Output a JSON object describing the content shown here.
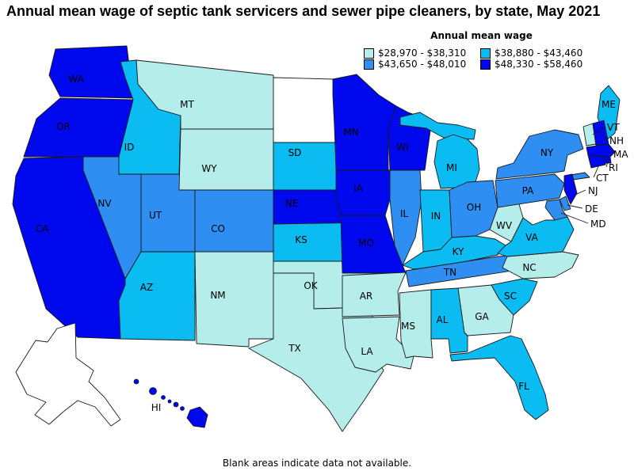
{
  "title": "Annual mean wage of septic tank servicers and sewer pipe cleaners, by state, May 2021",
  "legend": {
    "title": "Annual mean wage",
    "items": [
      {
        "range": "$28,970 - $38,310",
        "color": "#b5edea"
      },
      {
        "range": "$38,880 - $43,460",
        "color": "#0bbcf2"
      },
      {
        "range": "$43,650 - $48,010",
        "color": "#2e8ef2"
      },
      {
        "range": "$48,330 - $58,460",
        "color": "#0008ee"
      }
    ]
  },
  "footnote": "Blank areas indicate data not available.",
  "map": {
    "no_data_fill": "#ffffff",
    "states": [
      {
        "abbr": "WA",
        "wage_band": 4
      },
      {
        "abbr": "OR",
        "wage_band": 4
      },
      {
        "abbr": "CA",
        "wage_band": 4
      },
      {
        "abbr": "ID",
        "wage_band": 2
      },
      {
        "abbr": "NV",
        "wage_band": 3
      },
      {
        "abbr": "UT",
        "wage_band": 3
      },
      {
        "abbr": "AZ",
        "wage_band": 2
      },
      {
        "abbr": "MT",
        "wage_band": 1
      },
      {
        "abbr": "WY",
        "wage_band": 1
      },
      {
        "abbr": "CO",
        "wage_band": 3
      },
      {
        "abbr": "NM",
        "wage_band": 1
      },
      {
        "abbr": "ND",
        "wage_band": null
      },
      {
        "abbr": "SD",
        "wage_band": 2
      },
      {
        "abbr": "NE",
        "wage_band": 4
      },
      {
        "abbr": "KS",
        "wage_band": 2
      },
      {
        "abbr": "OK",
        "wage_band": 1
      },
      {
        "abbr": "TX",
        "wage_band": 1
      },
      {
        "abbr": "MN",
        "wage_band": 4
      },
      {
        "abbr": "IA",
        "wage_band": 4
      },
      {
        "abbr": "MO",
        "wage_band": 4
      },
      {
        "abbr": "AR",
        "wage_band": 1
      },
      {
        "abbr": "LA",
        "wage_band": 1
      },
      {
        "abbr": "WI",
        "wage_band": 4
      },
      {
        "abbr": "IL",
        "wage_band": 3
      },
      {
        "abbr": "MI",
        "wage_band": 2
      },
      {
        "abbr": "IN",
        "wage_band": 2
      },
      {
        "abbr": "OH",
        "wage_band": 3
      },
      {
        "abbr": "KY",
        "wage_band": 2
      },
      {
        "abbr": "TN",
        "wage_band": 3
      },
      {
        "abbr": "MS",
        "wage_band": 1
      },
      {
        "abbr": "AL",
        "wage_band": 2
      },
      {
        "abbr": "GA",
        "wage_band": 1
      },
      {
        "abbr": "FL",
        "wage_band": 2
      },
      {
        "abbr": "SC",
        "wage_band": 2
      },
      {
        "abbr": "NC",
        "wage_band": 1
      },
      {
        "abbr": "VA",
        "wage_band": 2
      },
      {
        "abbr": "WV",
        "wage_band": 1
      },
      {
        "abbr": "PA",
        "wage_band": 3
      },
      {
        "abbr": "NY",
        "wage_band": 3
      },
      {
        "abbr": "ME",
        "wage_band": 2
      },
      {
        "abbr": "VT",
        "wage_band": 1
      },
      {
        "abbr": "NH",
        "wage_band": 4
      },
      {
        "abbr": "MA",
        "wage_band": 4
      },
      {
        "abbr": "RI",
        "wage_band": 4
      },
      {
        "abbr": "CT",
        "wage_band": 4
      },
      {
        "abbr": "NJ",
        "wage_band": 4
      },
      {
        "abbr": "DE",
        "wage_band": 3
      },
      {
        "abbr": "MD",
        "wage_band": 3
      },
      {
        "abbr": "AK",
        "wage_band": null
      },
      {
        "abbr": "HI",
        "wage_band": 4
      }
    ]
  }
}
